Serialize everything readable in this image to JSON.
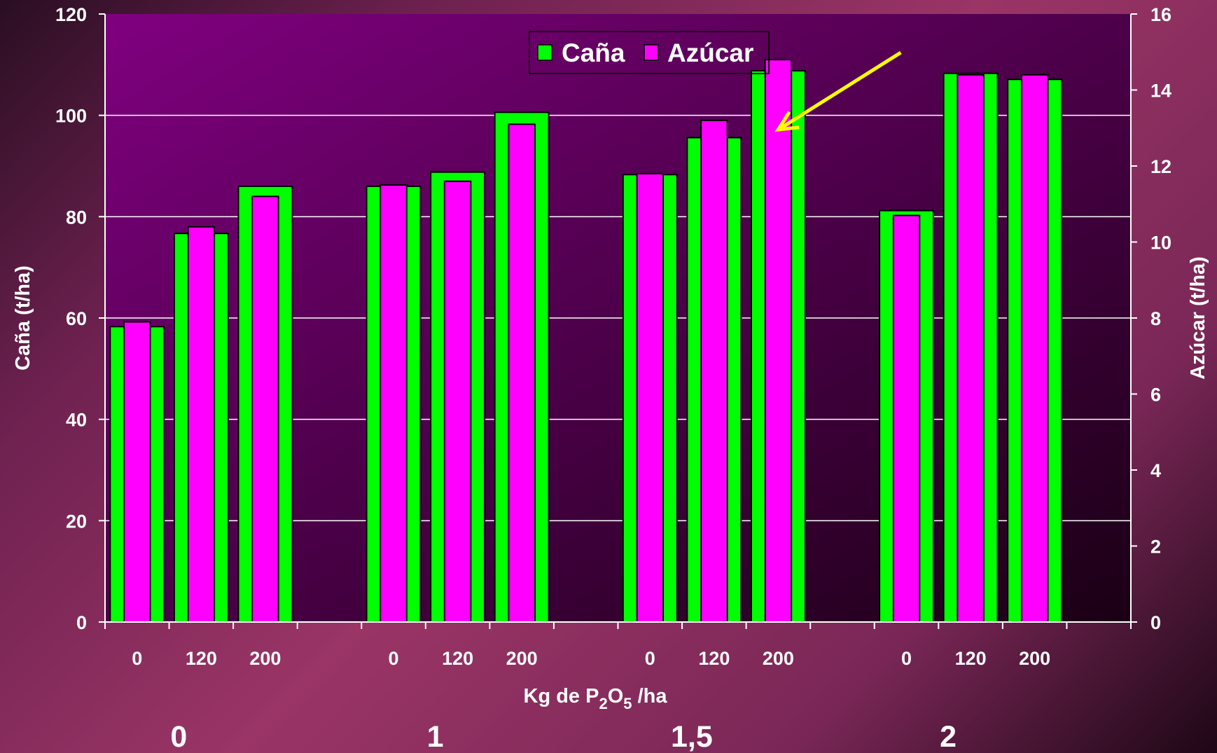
{
  "chart_data": {
    "type": "bar",
    "group_labels": [
      "0",
      "1",
      "1,5",
      "2"
    ],
    "sub_categories": [
      "0",
      "120",
      "200"
    ],
    "xlabel": {
      "prefix": "Kg de P",
      "sub1": "2",
      "mid": "O",
      "sub2": "5",
      "suffix": " /ha"
    },
    "ylabel_left": "Caña (t/ha)",
    "ylabel_right": "Azúcar (t/ha)",
    "ylim_left": [
      0,
      120
    ],
    "ylim_right": [
      0,
      16
    ],
    "yticks_left": [
      "0",
      "20",
      "40",
      "60",
      "80",
      "100",
      "120"
    ],
    "yticks_right": [
      "0",
      "2",
      "4",
      "6",
      "8",
      "10",
      "12",
      "14",
      "16"
    ],
    "grid": true,
    "legend_position": "top-center",
    "series": [
      {
        "name": "Caña",
        "axis": "left",
        "color": "#00ff00",
        "values": [
          58.3,
          76.7,
          86.0,
          86.0,
          88.8,
          100.6,
          88.3,
          95.6,
          108.8,
          81.2,
          108.3,
          107.1
        ]
      },
      {
        "name": "Azúcar",
        "axis": "right",
        "color": "#ff00ff",
        "values": [
          7.9,
          10.4,
          11.2,
          11.5,
          11.6,
          13.1,
          11.8,
          13.2,
          14.8,
          10.7,
          14.4,
          14.4
        ]
      }
    ],
    "annotation": {
      "type": "arrow",
      "color": "#ffff00",
      "points_to": "Azúcar 1,5 / 200"
    },
    "plot_background": [
      "#800080",
      "#1a0014"
    ]
  }
}
